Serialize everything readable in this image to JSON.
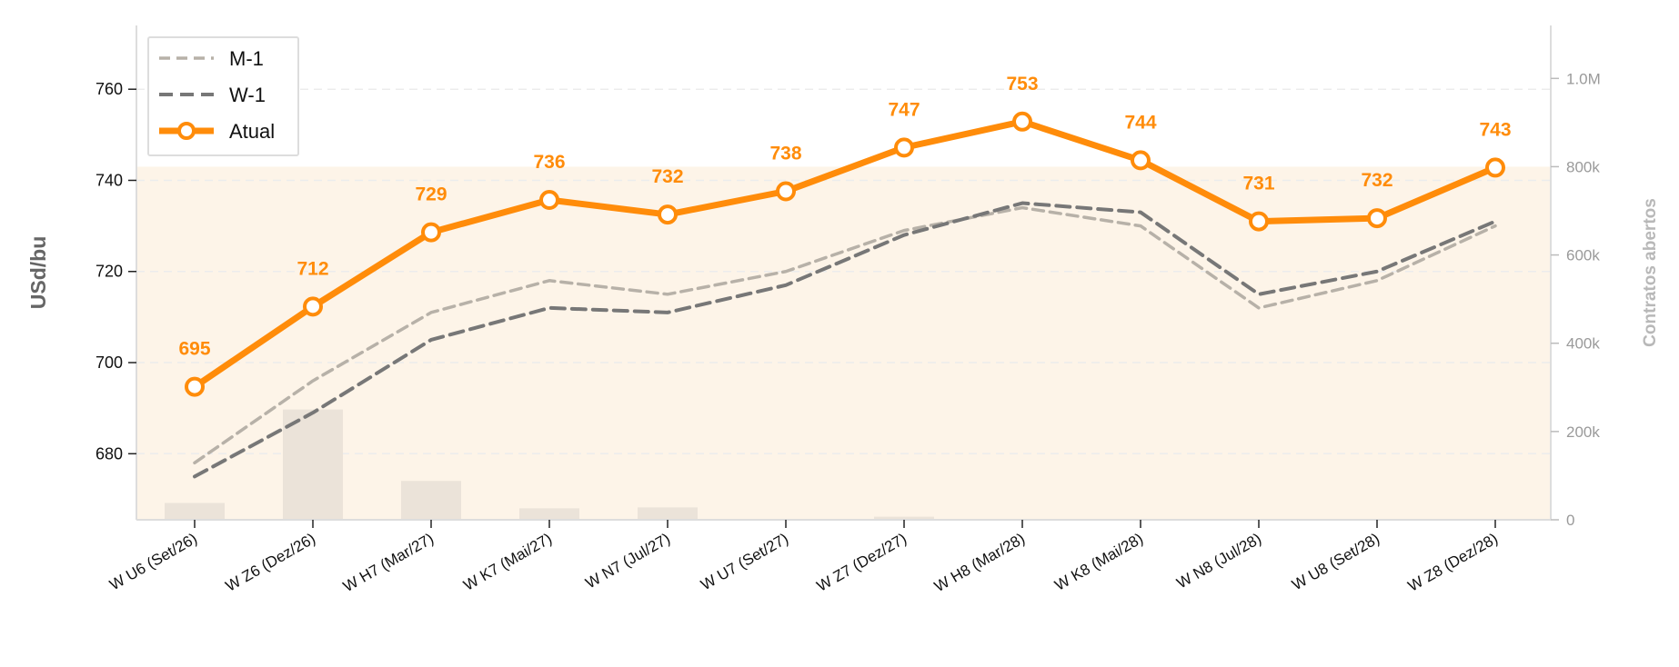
{
  "chart_data": {
    "type": "line",
    "categories": [
      "W U6 (Set/26)",
      "W Z6 (Dez/26)",
      "W H7 (Mar/27)",
      "W K7 (Mai/27)",
      "W N7 (Jul/27)",
      "W U7 (Set/27)",
      "W Z7 (Dez/27)",
      "W H8 (Mar/28)",
      "W K8 (Mai/28)",
      "W N8 (Jul/28)",
      "W U8 (Set/28)",
      "W Z8 (Dez/28)"
    ],
    "series": [
      {
        "name": "M-1",
        "style": "dashed",
        "color": "#b7b1a8",
        "values": [
          678,
          696,
          711,
          718,
          715,
          720,
          729,
          734,
          730,
          712,
          718,
          730
        ]
      },
      {
        "name": "W-1",
        "style": "dashed",
        "color": "#777777",
        "values": [
          675,
          689,
          705,
          712,
          711,
          717,
          728,
          735,
          733,
          715,
          720,
          731
        ]
      },
      {
        "name": "Atual",
        "style": "solid-markers",
        "color": "#ff8c0a",
        "values": [
          694.7,
          712.3,
          728.6,
          735.7,
          732.5,
          737.6,
          747.2,
          752.9,
          744.4,
          731.0,
          731.7,
          742.8
        ]
      }
    ],
    "data_labels": [
      "695",
      "712",
      "729",
      "736",
      "732",
      "738",
      "747",
      "753",
      "744",
      "731",
      "732",
      "743"
    ],
    "open_interest": {
      "values": [
        38000,
        250000,
        88000,
        26000,
        28000,
        2000,
        7000,
        0,
        0,
        0,
        0,
        0
      ],
      "color": "#ebe3d9",
      "area_total": 800000,
      "area_color": "#fdf4e8"
    },
    "ylabel": "USd/bu",
    "ylabel_right": "Contratos abertos",
    "ylim": [
      665.5,
      774
    ],
    "ylim_right": [
      0,
      1120000
    ],
    "yticks": [
      680,
      700,
      720,
      740,
      760
    ],
    "yticks_right": [
      0,
      200000,
      400000,
      600000,
      800000,
      1000000
    ],
    "yticks_right_labels": [
      "0",
      "200k",
      "400k",
      "600k",
      "800k",
      "1.0M"
    ],
    "grid": true,
    "legend_position": "top-left"
  }
}
